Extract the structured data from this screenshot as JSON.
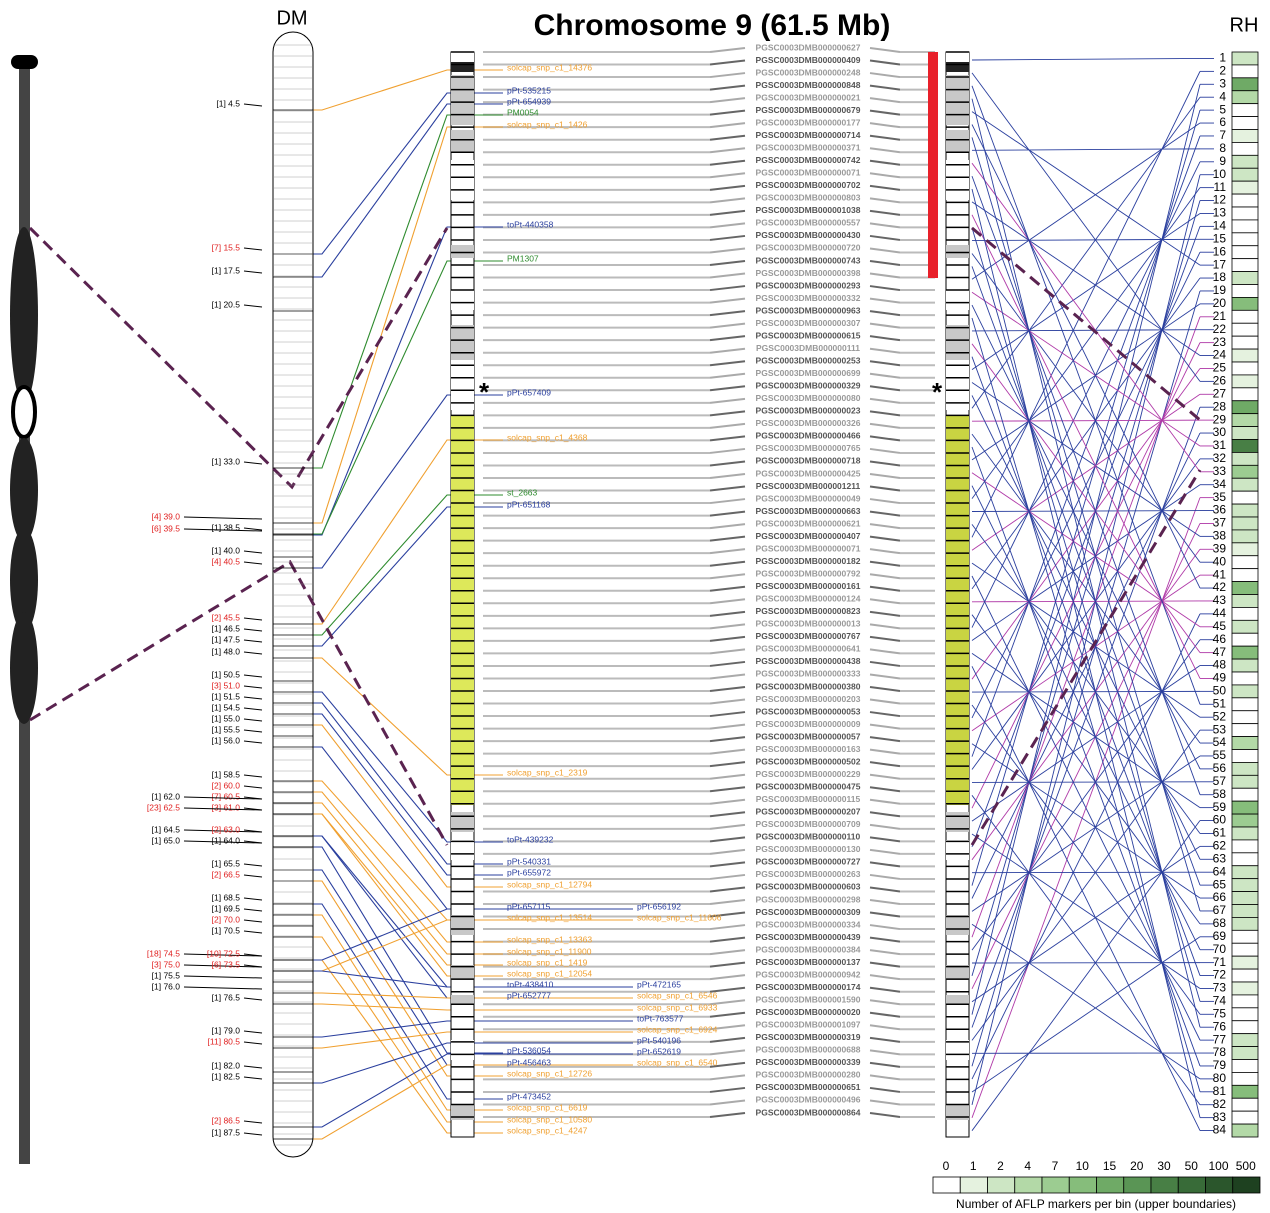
{
  "title": "Chromosome 9 (61.5 Mb)",
  "centromere_mark": "*",
  "dm": {
    "label": "DM",
    "markers": [
      {
        "label": "[1] 4.5",
        "color": "#000000"
      },
      {
        "label": "[7] 15.5",
        "color": "#e02020"
      },
      {
        "label": "[1] 17.5",
        "color": "#000000"
      },
      {
        "label": "[1] 20.5",
        "color": "#000000"
      },
      {
        "label": "[1] 33.0",
        "color": "#000000"
      },
      {
        "label": "[4] 39.0",
        "color": "#e02020"
      },
      {
        "label": "[6] 39.5",
        "color": "#e02020"
      },
      {
        "label": "[1] 38.5",
        "color": "#000000"
      },
      {
        "label": "[1] 40.0",
        "color": "#000000"
      },
      {
        "label": "[4] 40.5",
        "color": "#e02020"
      },
      {
        "label": "[2] 45.5",
        "color": "#e02020"
      },
      {
        "label": "[1] 46.5",
        "color": "#000000"
      },
      {
        "label": "[1] 47.5",
        "color": "#000000"
      },
      {
        "label": "[1] 48.0",
        "color": "#000000"
      },
      {
        "label": "[1] 50.5",
        "color": "#000000"
      },
      {
        "label": "[3] 51.0",
        "color": "#e02020"
      },
      {
        "label": "[1] 51.5",
        "color": "#000000"
      },
      {
        "label": "[1] 54.5",
        "color": "#000000"
      },
      {
        "label": "[1] 55.0",
        "color": "#000000"
      },
      {
        "label": "[1] 55.5",
        "color": "#000000"
      },
      {
        "label": "[1] 56.0",
        "color": "#000000"
      },
      {
        "label": "[1] 58.5",
        "color": "#000000"
      },
      {
        "label": "[2] 60.0",
        "color": "#e02020"
      },
      {
        "label": "[7] 60.5",
        "color": "#e02020"
      },
      {
        "label": "[1] 62.0",
        "color": "#000000"
      },
      {
        "label": "[3] 61.0",
        "color": "#e02020"
      },
      {
        "label": "[23] 62.5",
        "color": "#e02020"
      },
      {
        "label": "[1] 64.5",
        "color": "#000000"
      },
      {
        "label": "[2] 63.0",
        "color": "#e02020"
      },
      {
        "label": "[1] 65.0",
        "color": "#000000"
      },
      {
        "label": "[1] 64.0",
        "color": "#000000"
      },
      {
        "label": "[1] 65.5",
        "color": "#000000"
      },
      {
        "label": "[2] 66.5",
        "color": "#e02020"
      },
      {
        "label": "[1] 68.5",
        "color": "#000000"
      },
      {
        "label": "[1] 69.5",
        "color": "#000000"
      },
      {
        "label": "[2] 70.0",
        "color": "#e02020"
      },
      {
        "label": "[1] 70.5",
        "color": "#000000"
      },
      {
        "label": "[18] 74.5",
        "color": "#e02020"
      },
      {
        "label": "[10] 72.5",
        "color": "#e02020"
      },
      {
        "label": "[3] 75.0",
        "color": "#e02020"
      },
      {
        "label": "[6] 73.5",
        "color": "#e02020"
      },
      {
        "label": "[1] 75.5",
        "color": "#000000"
      },
      {
        "label": "[1] 76.0",
        "color": "#000000"
      },
      {
        "label": "[1] 76.5",
        "color": "#000000"
      },
      {
        "label": "[1] 79.0",
        "color": "#000000"
      },
      {
        "label": "[11] 80.5",
        "color": "#e02020"
      },
      {
        "label": "[1] 82.0",
        "color": "#000000"
      },
      {
        "label": "[1] 82.5",
        "color": "#000000"
      },
      {
        "label": "[2] 86.5",
        "color": "#e02020"
      },
      {
        "label": "[1] 87.5",
        "color": "#000000"
      }
    ]
  },
  "markers": [
    {
      "name": "solcap_snp_c1_14376",
      "color": "#f0a030"
    },
    {
      "name": "pPt-535215",
      "color": "#2a3f9e"
    },
    {
      "name": "pPt-654939",
      "color": "#2a3f9e"
    },
    {
      "name": "PM0054",
      "color": "#2e8b2e"
    },
    {
      "name": "solcap_snp_c1_1426",
      "color": "#f0a030"
    },
    {
      "name": "toPt-440358",
      "color": "#2a3f9e"
    },
    {
      "name": "PM1307",
      "color": "#2e8b2e"
    },
    {
      "name": "pPt-657409",
      "color": "#2a3f9e"
    },
    {
      "name": "solcap_snp_c1_4368",
      "color": "#f0a030"
    },
    {
      "name": "st_2663",
      "color": "#2e8b2e"
    },
    {
      "name": "pPt-651168",
      "color": "#2a3f9e"
    },
    {
      "name": "solcap_snp_c1_2319",
      "color": "#f0a030"
    },
    {
      "name": "toPt-439232",
      "color": "#2a3f9e"
    },
    {
      "name": "pPt-540331",
      "color": "#2a3f9e"
    },
    {
      "name": "pPt-655972",
      "color": "#2a3f9e"
    },
    {
      "name": "solcap_snp_c1_12794",
      "color": "#f0a030"
    },
    {
      "name": "pPt-657115",
      "color": "#2a3f9e"
    },
    {
      "name": "solcap_snp_c1_13514",
      "color": "#f0a030"
    },
    {
      "name": "solcap_snp_c1_13363",
      "color": "#f0a030"
    },
    {
      "name": "solcap_snp_c1_11900",
      "color": "#f0a030"
    },
    {
      "name": "solcap_snp_c1_1419",
      "color": "#f0a030"
    },
    {
      "name": "solcap_snp_c1_12054",
      "color": "#f0a030"
    },
    {
      "name": "toPt-438410",
      "color": "#2a3f9e"
    },
    {
      "name": "pPt-652777",
      "color": "#2a3f9e"
    },
    {
      "name": "pPt-536054",
      "color": "#2a3f9e"
    },
    {
      "name": "pPt-456463",
      "color": "#2a3f9e"
    },
    {
      "name": "solcap_snp_c1_12726",
      "color": "#f0a030"
    },
    {
      "name": "pPt-473452",
      "color": "#2a3f9e"
    },
    {
      "name": "solcap_snp_c1_6619",
      "color": "#f0a030"
    },
    {
      "name": "solcap_snp_c1_10580",
      "color": "#f0a030"
    },
    {
      "name": "solcap_snp_c1_4247",
      "color": "#f0a030"
    },
    {
      "name": "pPt-656192",
      "color": "#2a3f9e"
    },
    {
      "name": "solcap_snp_c1_11606",
      "color": "#f0a030"
    },
    {
      "name": "pPt-472165",
      "color": "#2a3f9e"
    },
    {
      "name": "solcap_snp_c1_6546",
      "color": "#f0a030"
    },
    {
      "name": "solcap_snp_c1_6933",
      "color": "#f0a030"
    },
    {
      "name": "toPt-763577",
      "color": "#2a3f9e"
    },
    {
      "name": "solcap_snp_c1_6924",
      "color": "#f0a030"
    },
    {
      "name": "pPt-540196",
      "color": "#2a3f9e"
    },
    {
      "name": "pPt-652619",
      "color": "#2a3f9e"
    },
    {
      "name": "solcap_snp_c1_6540",
      "color": "#f0a030"
    }
  ],
  "scaffolds": [
    "PGSC0003DMB000000627",
    "PGSC0003DMB000000409",
    "PGSC0003DMB000000248",
    "PGSC0003DMB000000848",
    "PGSC0003DMB000000021",
    "PGSC0003DMB000000679",
    "PGSC0003DMB000000177",
    "PGSC0003DMB000000714",
    "PGSC0003DMB000000371",
    "PGSC0003DMB000000742",
    "PGSC0003DMB000000071",
    "PGSC0003DMB000000702",
    "PGSC0003DMB000000803",
    "PGSC0003DMB000001038",
    "PGSC0003DMB000000557",
    "PGSC0003DMB000000430",
    "PGSC0003DMB000000720",
    "PGSC0003DMB000000743",
    "PGSC0003DMB000000398",
    "PGSC0003DMB000000293",
    "PGSC0003DMB000000332",
    "PGSC0003DMB000000963",
    "PGSC0003DMB000000307",
    "PGSC0003DMB000000615",
    "PGSC0003DMB000000111",
    "PGSC0003DMB000000253",
    "PGSC0003DMB000000699",
    "PGSC0003DMB000000329",
    "PGSC0003DMB000000080",
    "PGSC0003DMB000000023",
    "PGSC0003DMB000000326",
    "PGSC0003DMB000000466",
    "PGSC0003DMB000000765",
    "PGSC0003DMB000000718",
    "PGSC0003DMB000000425",
    "PGSC0003DMB000001211",
    "PGSC0003DMB000000049",
    "PGSC0003DMB000000663",
    "PGSC0003DMB000000621",
    "PGSC0003DMB000000407",
    "PGSC0003DMB000000071",
    "PGSC0003DMB000000182",
    "PGSC0003DMB000000792",
    "PGSC0003DMB000000161",
    "PGSC0003DMB000000124",
    "PGSC0003DMB000000823",
    "PGSC0003DMB000000013",
    "PGSC0003DMB000000767",
    "PGSC0003DMB000000641",
    "PGSC0003DMB000000438",
    "PGSC0003DMB000000333",
    "PGSC0003DMB000000380",
    "PGSC0003DMB000000203",
    "PGSC0003DMB000000053",
    "PGSC0003DMB000000009",
    "PGSC0003DMB000000057",
    "PGSC0003DMB000000163",
    "PGSC0003DMB000000502",
    "PGSC0003DMB000000229",
    "PGSC0003DMB000000475",
    "PGSC0003DMB000000115",
    "PGSC0003DMB000000207",
    "PGSC0003DMB000000709",
    "PGSC0003DMB000000110",
    "PGSC0003DMB000000130",
    "PGSC0003DMB000000727",
    "PGSC0003DMB000000263",
    "PGSC0003DMB000000603",
    "PGSC0003DMB000000298",
    "PGSC0003DMB000000309",
    "PGSC0003DMB000000334",
    "PGSC0003DMB000000439",
    "PGSC0003DMB000000384",
    "PGSC0003DMB000000137",
    "PGSC0003DMB000000942",
    "PGSC0003DMB000000174",
    "PGSC0003DMB000001590",
    "PGSC0003DMB000000020",
    "PGSC0003DMB000001097",
    "PGSC0003DMB000000319",
    "PGSC0003DMB000000688",
    "PGSC0003DMB000000339",
    "PGSC0003DMB000000280",
    "PGSC0003DMB000000651",
    "PGSC0003DMB000000496",
    "PGSC0003DMB000000864"
  ],
  "rh": {
    "label": "RH",
    "bins": [
      1,
      2,
      3,
      4,
      5,
      6,
      7,
      8,
      9,
      10,
      11,
      12,
      13,
      14,
      15,
      16,
      17,
      18,
      19,
      20,
      21,
      22,
      23,
      24,
      25,
      26,
      27,
      28,
      29,
      30,
      31,
      32,
      33,
      34,
      35,
      36,
      37,
      38,
      39,
      40,
      41,
      42,
      43,
      44,
      45,
      46,
      47,
      48,
      49,
      50,
      51,
      52,
      53,
      54,
      55,
      56,
      57,
      58,
      59,
      60,
      61,
      62,
      63,
      64,
      65,
      66,
      67,
      68,
      69,
      70,
      71,
      72,
      73,
      74,
      75,
      76,
      77,
      78,
      79,
      80,
      81,
      82,
      83,
      84
    ],
    "bin_colors": [
      "#cde6c4",
      "#ffffff",
      "#6faa66",
      "#b3d9a7",
      "#ffffff",
      "#ffffff",
      "#e5f2df",
      "#ffffff",
      "#cde6c4",
      "#cde6c4",
      "#e5f2df",
      "#ffffff",
      "#ffffff",
      "#ffffff",
      "#ffffff",
      "#ffffff",
      "#ffffff",
      "#cde6c4",
      "#ffffff",
      "#86bd7b",
      "#ffffff",
      "#ffffff",
      "#ffffff",
      "#e5f2df",
      "#ffffff",
      "#e5f2df",
      "#ffffff",
      "#6faa66",
      "#b3d9a7",
      "#cde6c4",
      "#487f45",
      "#cde6c4",
      "#9ccc91",
      "#cde6c4",
      "#ffffff",
      "#cde6c4",
      "#cde6c4",
      "#cde6c4",
      "#e5f2df",
      "#ffffff",
      "#ffffff",
      "#86bd7b",
      "#cde6c4",
      "#ffffff",
      "#cde6c4",
      "#ffffff",
      "#86bd7b",
      "#cde6c4",
      "#ffffff",
      "#cde6c4",
      "#ffffff",
      "#ffffff",
      "#ffffff",
      "#b3d9a7",
      "#ffffff",
      "#cde6c4",
      "#cde6c4",
      "#ffffff",
      "#86bd7b",
      "#9ccc91",
      "#cde6c4",
      "#ffffff",
      "#ffffff",
      "#cde6c4",
      "#cde6c4",
      "#cde6c4",
      "#cde6c4",
      "#cde6c4",
      "#ffffff",
      "#ffffff",
      "#e5f2df",
      "#ffffff",
      "#e5f2df",
      "#ffffff",
      "#ffffff",
      "#ffffff",
      "#cde6c4",
      "#cde6c4",
      "#ffffff",
      "#ffffff",
      "#86bd7b",
      "#ffffff",
      "#ffffff",
      "#b3d9a7"
    ]
  },
  "legend": {
    "labels": [
      0,
      1,
      2,
      4,
      7,
      10,
      15,
      20,
      30,
      50,
      100,
      500
    ],
    "colors": [
      "#ffffff",
      "#e5f2df",
      "#cde6c4",
      "#b3d9a7",
      "#9ccc91",
      "#86bd7b",
      "#6faa66",
      "#5a9555",
      "#487f45",
      "#386b38",
      "#2b562c",
      "#1e4120"
    ],
    "caption": "Number of AFLP markers per bin (upper boundaries)"
  }
}
